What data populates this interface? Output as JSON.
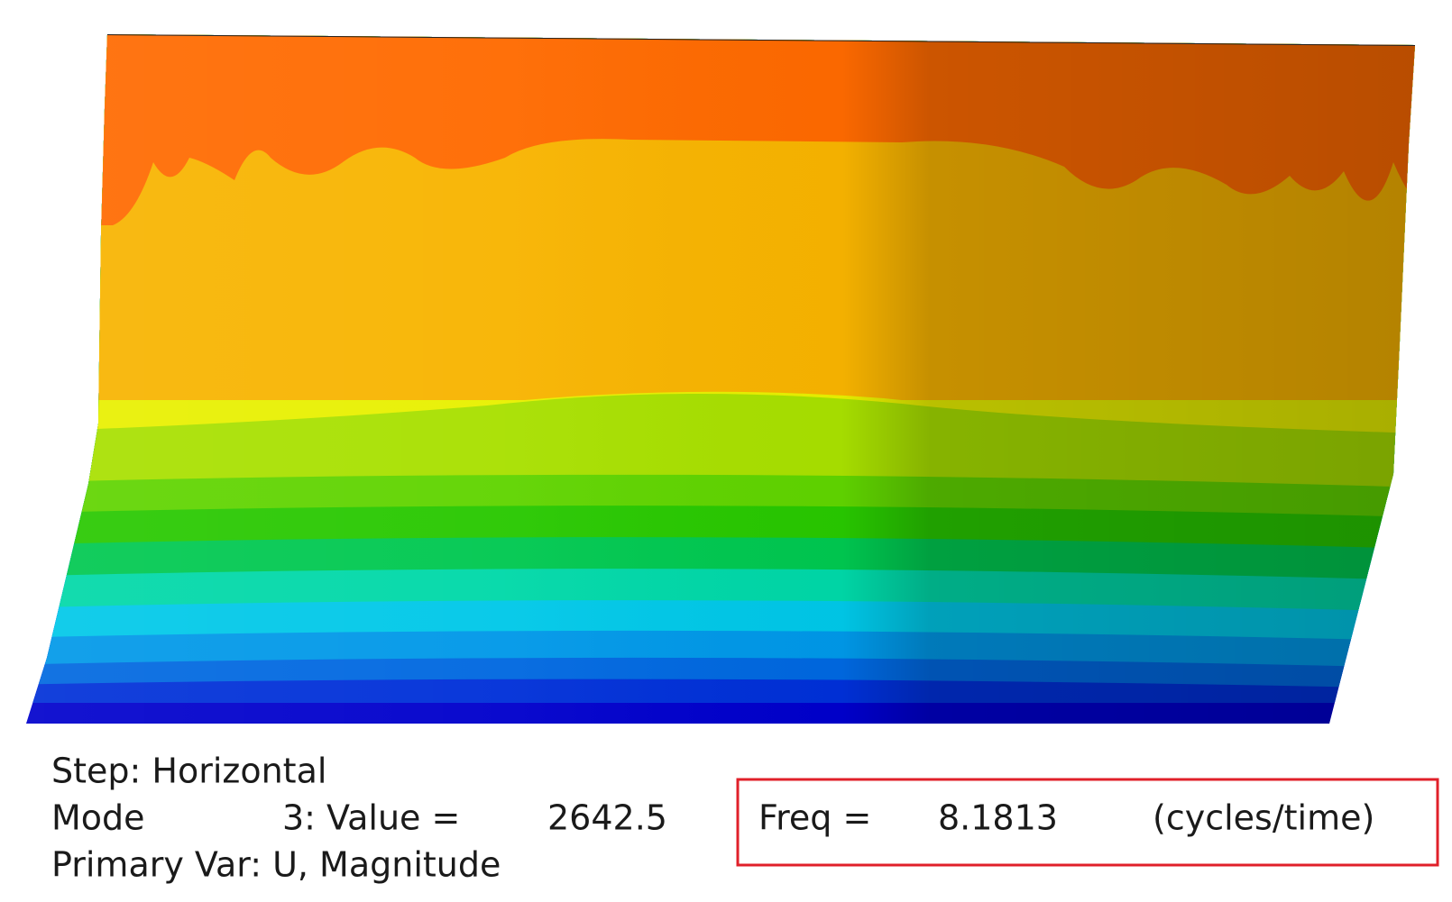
{
  "step": "Step: Horizontal",
  "mode": {
    "label": "Mode",
    "number_text": "3: Value =",
    "value": "2642.5"
  },
  "primary_var": "Primary Var: U, Magnitude",
  "frequency": {
    "label": "Freq =",
    "value": "8.1813",
    "unit": "(cycles/time)"
  }
}
